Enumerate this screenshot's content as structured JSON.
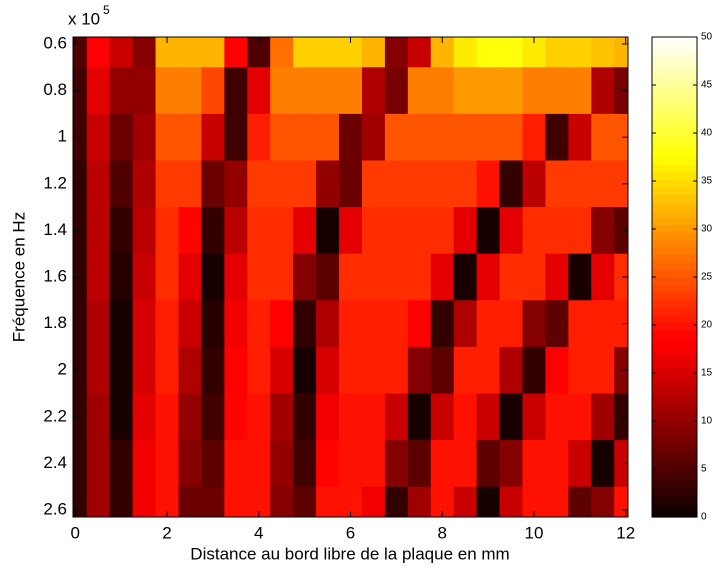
{
  "chart_data": {
    "type": "heatmap",
    "x_label": "Distance au bord libre de la plaque en mm",
    "y_label": "Fréquence en Hz",
    "y_multiplier": {
      "base": "x 10",
      "exponent": "5"
    },
    "colormap": "hot",
    "x": [
      0,
      0.5,
      1,
      1.5,
      2,
      2.5,
      3,
      3.5,
      4,
      4.5,
      5,
      5.5,
      6,
      6.5,
      7,
      7.5,
      8,
      8.5,
      9,
      9.5,
      10,
      10.5,
      11,
      11.5,
      12
    ],
    "y": [
      0.6,
      0.8,
      1,
      1.2,
      1.4,
      1.6,
      1.8,
      2,
      2.2,
      2.4,
      2.6
    ],
    "z": [
      [
        5,
        18,
        14,
        9,
        32,
        32,
        32,
        18,
        5,
        27,
        34,
        34,
        34,
        32,
        9,
        14,
        32,
        36,
        38,
        38,
        36,
        34,
        34,
        33,
        32
      ],
      [
        4,
        16,
        10,
        10,
        28,
        28,
        24,
        4,
        16,
        28,
        28,
        28,
        28,
        12,
        8,
        28,
        28,
        30,
        30,
        30,
        28,
        28,
        28,
        12,
        8
      ],
      [
        4,
        14,
        7,
        11,
        25,
        25,
        14,
        4,
        21,
        25,
        25,
        25,
        7,
        11,
        25,
        25,
        25,
        25,
        25,
        25,
        21,
        4,
        14,
        25,
        25
      ],
      [
        3,
        13,
        5,
        12,
        23,
        23,
        7,
        10,
        23,
        23,
        23,
        10,
        7,
        23,
        23,
        23,
        23,
        23,
        20,
        3,
        13,
        23,
        23,
        23,
        23
      ],
      [
        3,
        13,
        3,
        13,
        22,
        19,
        3,
        13,
        22,
        22,
        16,
        1,
        16,
        22,
        22,
        22,
        22,
        16,
        1,
        16,
        22,
        22,
        22,
        9,
        6
      ],
      [
        3,
        13,
        2,
        14,
        22,
        16,
        1,
        16,
        22,
        22,
        9,
        6,
        22,
        22,
        22,
        22,
        16,
        1,
        16,
        22,
        22,
        16,
        1,
        16,
        22
      ],
      [
        3,
        12,
        1,
        15,
        21,
        14,
        2,
        17,
        21,
        18,
        3,
        12,
        21,
        21,
        21,
        18,
        3,
        12,
        21,
        21,
        9,
        6,
        21,
        21,
        21
      ],
      [
        3,
        12,
        1,
        15,
        21,
        12,
        3,
        18,
        21,
        15,
        1,
        15,
        21,
        21,
        21,
        9,
        6,
        21,
        21,
        12,
        3,
        18,
        21,
        21,
        9
      ],
      [
        3,
        11,
        1,
        16,
        20,
        10,
        4,
        19,
        20,
        11,
        3,
        17,
        20,
        20,
        14,
        1,
        14,
        20,
        14,
        1,
        14,
        20,
        20,
        11,
        3
      ],
      [
        3,
        11,
        3,
        17,
        20,
        9,
        6,
        20,
        20,
        10,
        4,
        19,
        20,
        20,
        9,
        6,
        20,
        20,
        6,
        9,
        20,
        20,
        14,
        1,
        14
      ],
      [
        3,
        11,
        3,
        17,
        20,
        7,
        7,
        20,
        20,
        9,
        6,
        20,
        20,
        17,
        3,
        11,
        20,
        14,
        1,
        14,
        20,
        20,
        6,
        9,
        20
      ]
    ],
    "xlim": [
      -0.05,
      12.05
    ],
    "xticks": [
      0,
      2,
      4,
      6,
      8,
      10,
      12
    ],
    "ylim": [
      0.57,
      2.63
    ],
    "y_reversed": true,
    "yticks": [
      0.6,
      0.8,
      1,
      1.2,
      1.4,
      1.6,
      1.8,
      2,
      2.2,
      2.4,
      2.6
    ],
    "clim": [
      0,
      50
    ],
    "cticks": [
      0,
      5,
      10,
      15,
      20,
      25,
      30,
      35,
      40,
      45,
      50
    ]
  }
}
